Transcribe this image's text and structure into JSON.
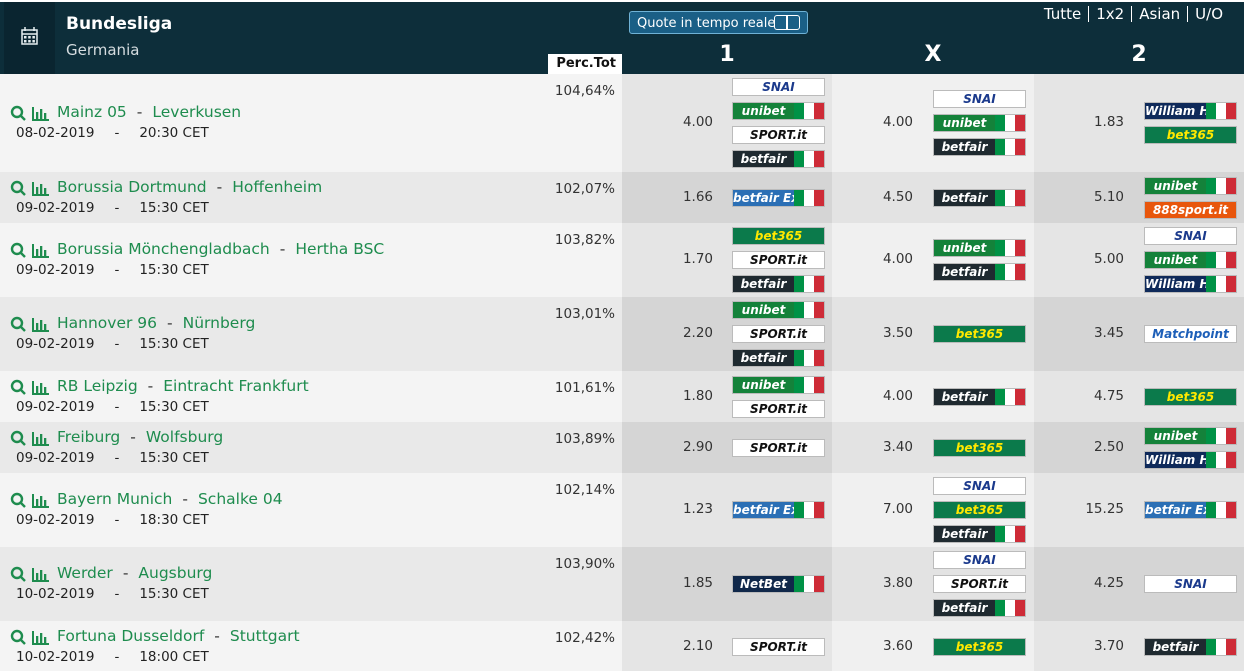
{
  "header": {
    "title": "Bundesliga",
    "subtitle": "Germania",
    "toggle": "Quote in tempo reale",
    "filters": [
      "Tutte",
      "1x2",
      "Asian",
      "U/O"
    ]
  },
  "columns": {
    "perc": "Perc.Tot",
    "odds": [
      "1",
      "X",
      "2"
    ]
  },
  "separator": "-",
  "rows": [
    {
      "home": "Mainz 05",
      "away": "Leverkusen",
      "date": "08-02-2019",
      "time": "20:30 CET",
      "perc": "104,64%",
      "odds": [
        {
          "value": "4.00",
          "logos": [
            {
              "name": "SNAI",
              "bg": "#ffffff",
              "fg": "#1b3a8c",
              "flag": false
            },
            {
              "name": "unibet",
              "bg": "#14823a",
              "fg": "#ffffff",
              "flag": true
            },
            {
              "name": "SPORT.it",
              "bg": "#ffffff",
              "fg": "#111111",
              "flag": false
            },
            {
              "name": "betfair",
              "bg": "#1f2a30",
              "fg": "#ffffff",
              "flag": true
            }
          ]
        },
        {
          "value": "4.00",
          "logos": [
            {
              "name": "SNAI",
              "bg": "#ffffff",
              "fg": "#1b3a8c",
              "flag": false
            },
            {
              "name": "unibet",
              "bg": "#14823a",
              "fg": "#ffffff",
              "flag": true
            },
            {
              "name": "betfair",
              "bg": "#1f2a30",
              "fg": "#ffffff",
              "flag": true
            }
          ]
        },
        {
          "value": "1.83",
          "logos": [
            {
              "name": "William HILL",
              "bg": "#0f2a5a",
              "fg": "#ffffff",
              "flag": true
            },
            {
              "name": "bet365",
              "bg": "#0b7a4b",
              "fg": "#ffe800",
              "flag": false
            }
          ]
        }
      ]
    },
    {
      "home": "Borussia Dortmund",
      "away": "Hoffenheim",
      "date": "09-02-2019",
      "time": "15:30 CET",
      "perc": "102,07%",
      "odds": [
        {
          "value": "1.66",
          "logos": [
            {
              "name": "betfair Exchange",
              "bg": "#2b6fb5",
              "fg": "#ffffff",
              "flag": true
            }
          ]
        },
        {
          "value": "4.50",
          "logos": [
            {
              "name": "betfair",
              "bg": "#1f2a30",
              "fg": "#ffffff",
              "flag": true
            }
          ]
        },
        {
          "value": "5.10",
          "logos": [
            {
              "name": "unibet",
              "bg": "#14823a",
              "fg": "#ffffff",
              "flag": true
            },
            {
              "name": "888sport.it",
              "bg": "#e8560c",
              "fg": "#ffffff",
              "flag": false
            }
          ]
        }
      ]
    },
    {
      "home": "Borussia Mönchengladbach",
      "away": "Hertha BSC",
      "date": "09-02-2019",
      "time": "15:30 CET",
      "perc": "103,82%",
      "odds": [
        {
          "value": "1.70",
          "logos": [
            {
              "name": "bet365",
              "bg": "#0b7a4b",
              "fg": "#ffe800",
              "flag": false
            },
            {
              "name": "SPORT.it",
              "bg": "#ffffff",
              "fg": "#111111",
              "flag": false
            },
            {
              "name": "betfair",
              "bg": "#1f2a30",
              "fg": "#ffffff",
              "flag": true
            }
          ]
        },
        {
          "value": "4.00",
          "logos": [
            {
              "name": "unibet",
              "bg": "#14823a",
              "fg": "#ffffff",
              "flag": true
            },
            {
              "name": "betfair",
              "bg": "#1f2a30",
              "fg": "#ffffff",
              "flag": true
            }
          ]
        },
        {
          "value": "5.00",
          "logos": [
            {
              "name": "SNAI",
              "bg": "#ffffff",
              "fg": "#1b3a8c",
              "flag": false
            },
            {
              "name": "unibet",
              "bg": "#14823a",
              "fg": "#ffffff",
              "flag": true
            },
            {
              "name": "William HILL",
              "bg": "#0f2a5a",
              "fg": "#ffffff",
              "flag": true
            }
          ]
        }
      ]
    },
    {
      "home": "Hannover 96",
      "away": "Nürnberg",
      "date": "09-02-2019",
      "time": "15:30 CET",
      "perc": "103,01%",
      "odds": [
        {
          "value": "2.20",
          "logos": [
            {
              "name": "unibet",
              "bg": "#14823a",
              "fg": "#ffffff",
              "flag": true
            },
            {
              "name": "SPORT.it",
              "bg": "#ffffff",
              "fg": "#111111",
              "flag": false
            },
            {
              "name": "betfair",
              "bg": "#1f2a30",
              "fg": "#ffffff",
              "flag": true
            }
          ]
        },
        {
          "value": "3.50",
          "logos": [
            {
              "name": "bet365",
              "bg": "#0b7a4b",
              "fg": "#ffe800",
              "flag": false
            }
          ]
        },
        {
          "value": "3.45",
          "logos": [
            {
              "name": "Matchpoint",
              "bg": "#ffffff",
              "fg": "#1d5fb8",
              "flag": false
            }
          ]
        }
      ]
    },
    {
      "home": "RB Leipzig",
      "away": "Eintracht Frankfurt",
      "date": "09-02-2019",
      "time": "15:30 CET",
      "perc": "101,61%",
      "odds": [
        {
          "value": "1.80",
          "logos": [
            {
              "name": "unibet",
              "bg": "#14823a",
              "fg": "#ffffff",
              "flag": true
            },
            {
              "name": "SPORT.it",
              "bg": "#ffffff",
              "fg": "#111111",
              "flag": false
            }
          ]
        },
        {
          "value": "4.00",
          "logos": [
            {
              "name": "betfair",
              "bg": "#1f2a30",
              "fg": "#ffffff",
              "flag": true
            }
          ]
        },
        {
          "value": "4.75",
          "logos": [
            {
              "name": "bet365",
              "bg": "#0b7a4b",
              "fg": "#ffe800",
              "flag": false
            }
          ]
        }
      ]
    },
    {
      "home": "Freiburg",
      "away": "Wolfsburg",
      "date": "09-02-2019",
      "time": "15:30 CET",
      "perc": "103,89%",
      "odds": [
        {
          "value": "2.90",
          "logos": [
            {
              "name": "SPORT.it",
              "bg": "#ffffff",
              "fg": "#111111",
              "flag": false
            }
          ]
        },
        {
          "value": "3.40",
          "logos": [
            {
              "name": "bet365",
              "bg": "#0b7a4b",
              "fg": "#ffe800",
              "flag": false
            }
          ]
        },
        {
          "value": "2.50",
          "logos": [
            {
              "name": "unibet",
              "bg": "#14823a",
              "fg": "#ffffff",
              "flag": true
            },
            {
              "name": "William HILL",
              "bg": "#0f2a5a",
              "fg": "#ffffff",
              "flag": true
            }
          ]
        }
      ]
    },
    {
      "home": "Bayern Munich",
      "away": "Schalke 04",
      "date": "09-02-2019",
      "time": "18:30 CET",
      "perc": "102,14%",
      "odds": [
        {
          "value": "1.23",
          "logos": [
            {
              "name": "betfair Exchange",
              "bg": "#2b6fb5",
              "fg": "#ffffff",
              "flag": true
            }
          ]
        },
        {
          "value": "7.00",
          "logos": [
            {
              "name": "SNAI",
              "bg": "#ffffff",
              "fg": "#1b3a8c",
              "flag": false
            },
            {
              "name": "bet365",
              "bg": "#0b7a4b",
              "fg": "#ffe800",
              "flag": false
            },
            {
              "name": "betfair",
              "bg": "#1f2a30",
              "fg": "#ffffff",
              "flag": true
            }
          ]
        },
        {
          "value": "15.25",
          "logos": [
            {
              "name": "betfair Exchange",
              "bg": "#2b6fb5",
              "fg": "#ffffff",
              "flag": true
            }
          ]
        }
      ]
    },
    {
      "home": "Werder",
      "away": "Augsburg",
      "date": "10-02-2019",
      "time": "15:30 CET",
      "perc": "103,90%",
      "odds": [
        {
          "value": "1.85",
          "logos": [
            {
              "name": "NetBet",
              "bg": "#10284a",
              "fg": "#ffffff",
              "flag": true
            }
          ]
        },
        {
          "value": "3.80",
          "logos": [
            {
              "name": "SNAI",
              "bg": "#ffffff",
              "fg": "#1b3a8c",
              "flag": false
            },
            {
              "name": "SPORT.it",
              "bg": "#ffffff",
              "fg": "#111111",
              "flag": false
            },
            {
              "name": "betfair",
              "bg": "#1f2a30",
              "fg": "#ffffff",
              "flag": true
            }
          ]
        },
        {
          "value": "4.25",
          "logos": [
            {
              "name": "SNAI",
              "bg": "#ffffff",
              "fg": "#1b3a8c",
              "flag": false
            }
          ]
        }
      ]
    },
    {
      "home": "Fortuna Dusseldorf",
      "away": "Stuttgart",
      "date": "10-02-2019",
      "time": "18:00 CET",
      "perc": "102,42%",
      "odds": [
        {
          "value": "2.10",
          "logos": [
            {
              "name": "SPORT.it",
              "bg": "#ffffff",
              "fg": "#111111",
              "flag": false
            }
          ]
        },
        {
          "value": "3.60",
          "logos": [
            {
              "name": "bet365",
              "bg": "#0b7a4b",
              "fg": "#ffe800",
              "flag": false
            }
          ]
        },
        {
          "value": "3.70",
          "logos": [
            {
              "name": "betfair",
              "bg": "#1f2a30",
              "fg": "#ffffff",
              "flag": true
            }
          ]
        }
      ]
    }
  ]
}
